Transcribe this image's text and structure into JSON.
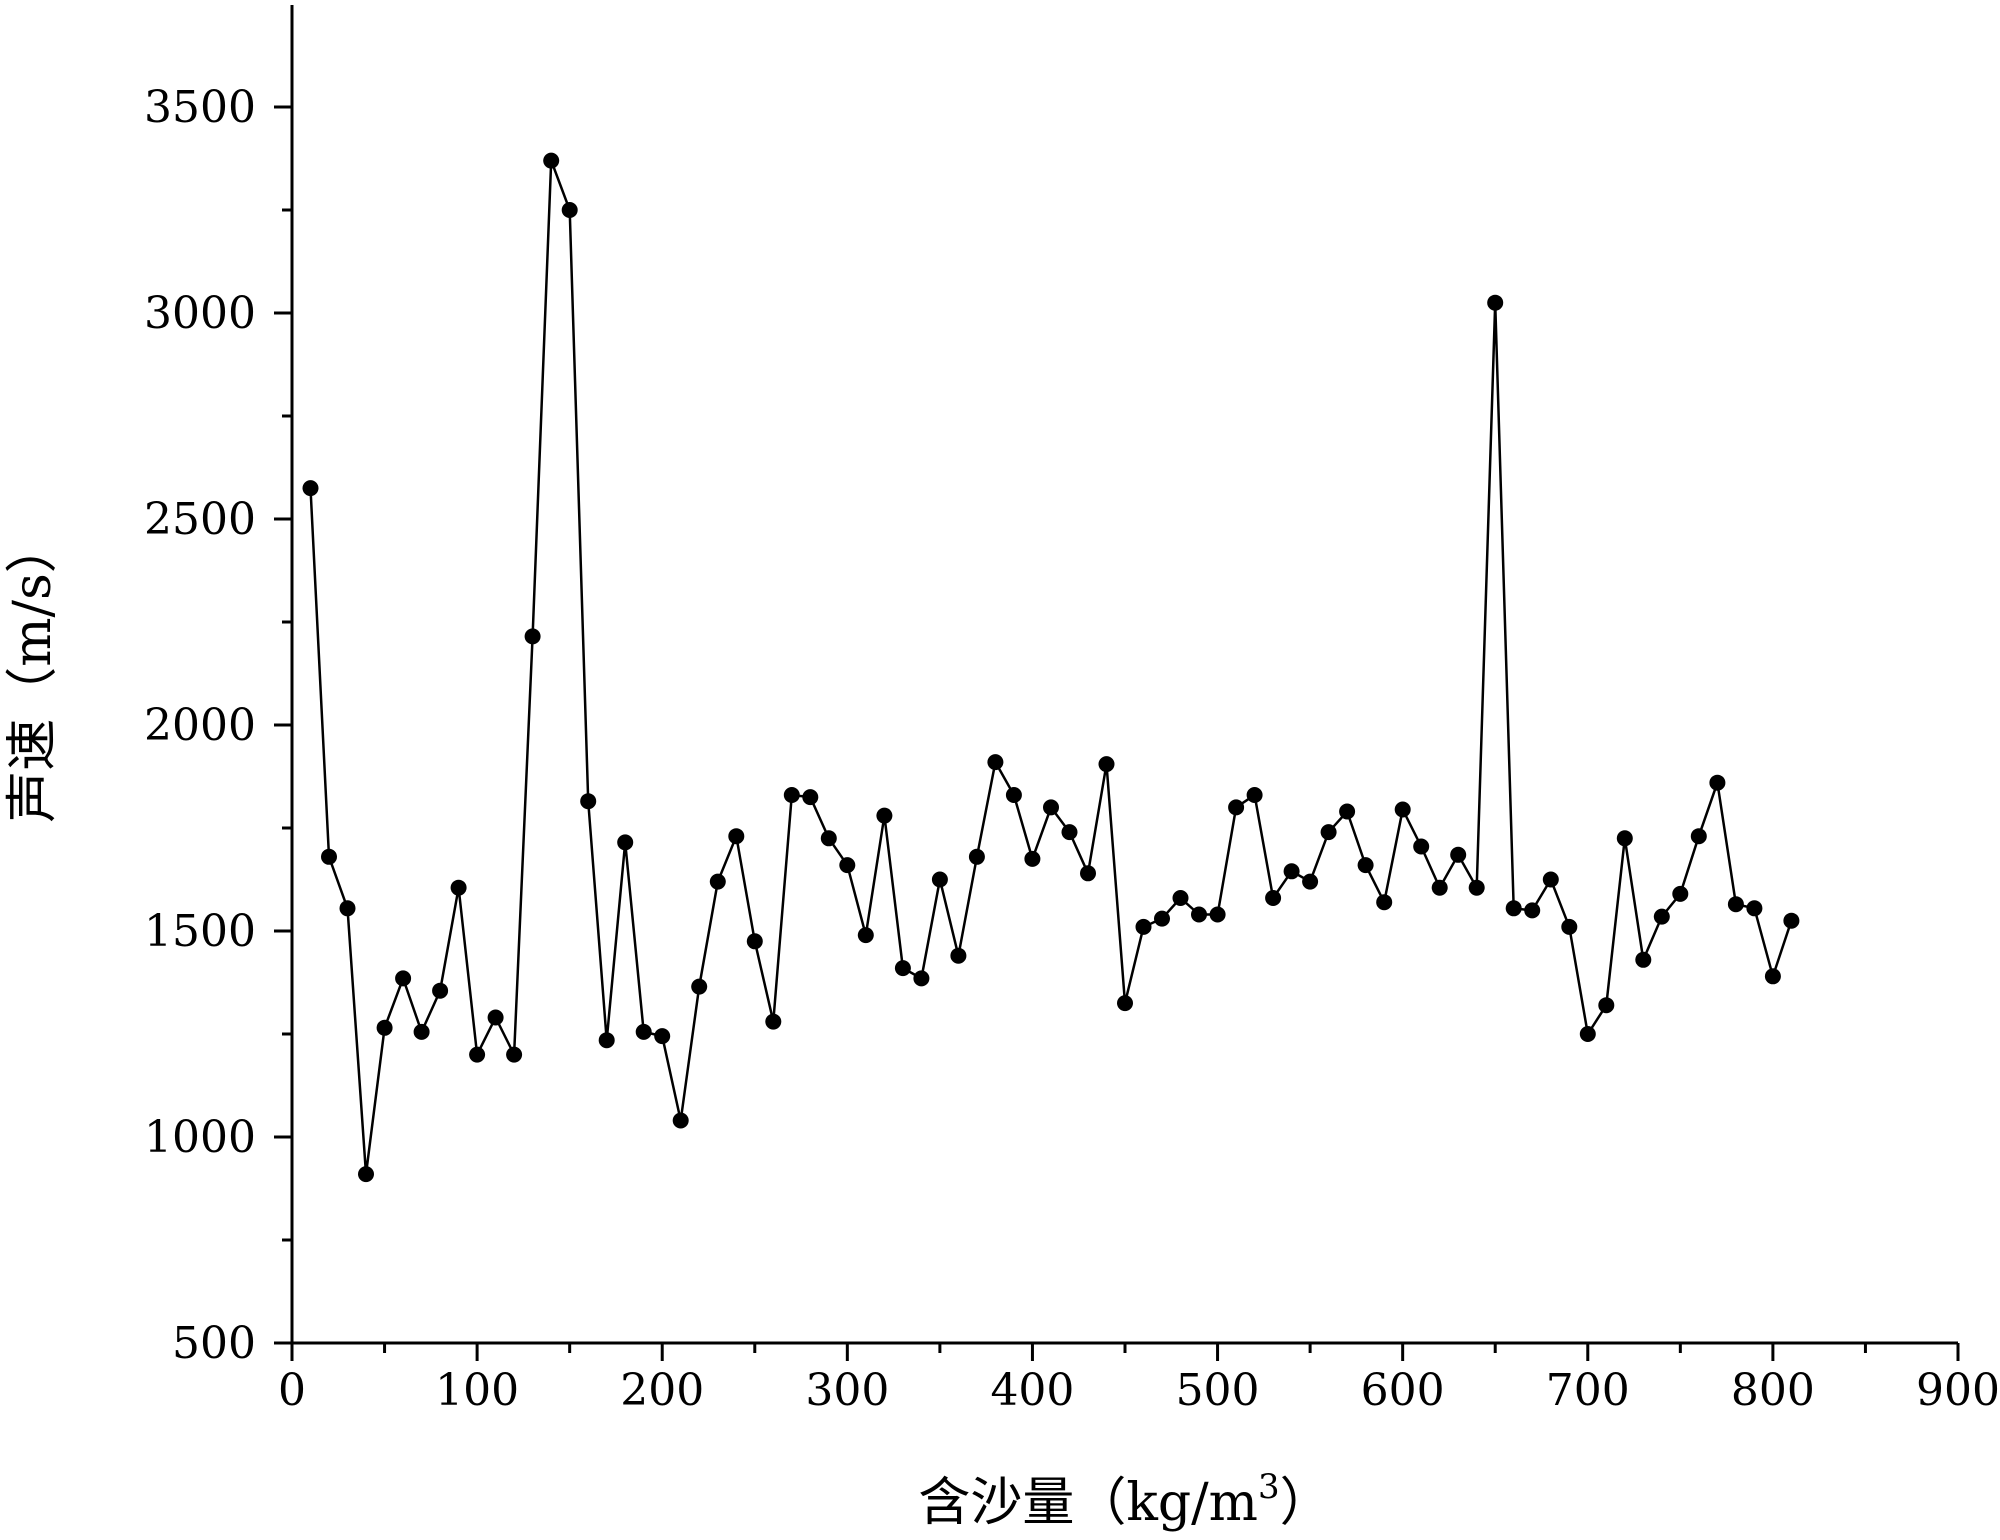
{
  "chart_data": {
    "type": "line",
    "xlabel": "含沙量（kg/m",
    "xlabel_sup": "3",
    "xlabel_end": "）",
    "ylabel": "声速（m/s）",
    "xlim": [
      0,
      900
    ],
    "ylim": [
      500,
      3750
    ],
    "x_ticks": [
      0,
      100,
      200,
      300,
      400,
      500,
      600,
      700,
      800,
      900
    ],
    "y_ticks": [
      500,
      1000,
      1500,
      2000,
      2500,
      3000,
      3500
    ],
    "grid": false,
    "series": [
      {
        "marker": "circle",
        "color": "#000000",
        "x": [
          10,
          20,
          30,
          40,
          50,
          60,
          70,
          80,
          90,
          100,
          110,
          120,
          130,
          140,
          150,
          160,
          170,
          180,
          190,
          200,
          210,
          220,
          230,
          240,
          250,
          260,
          270,
          280,
          290,
          300,
          310,
          320,
          330,
          340,
          350,
          360,
          370,
          380,
          390,
          400,
          410,
          420,
          430,
          440,
          450,
          460,
          470,
          480,
          490,
          500,
          510,
          520,
          530,
          540,
          550,
          560,
          570,
          580,
          590,
          600,
          610,
          620,
          630,
          640,
          650,
          660,
          670,
          680,
          690,
          700,
          710,
          720,
          730,
          740,
          750,
          760,
          770,
          780,
          790,
          800,
          810
        ],
        "y": [
          2575,
          1680,
          1555,
          910,
          1265,
          1385,
          1255,
          1355,
          1605,
          1200,
          1290,
          1200,
          2215,
          3370,
          3250,
          1815,
          1235,
          1715,
          1255,
          1245,
          1040,
          1365,
          1620,
          1730,
          1475,
          1280,
          1830,
          1825,
          1725,
          1660,
          1490,
          1780,
          1410,
          1385,
          1625,
          1440,
          1680,
          1910,
          1830,
          1675,
          1800,
          1740,
          1640,
          1905,
          1325,
          1510,
          1530,
          1580,
          1540,
          1540,
          1800,
          1830,
          1580,
          1645,
          1620,
          1740,
          1790,
          1660,
          1570,
          1795,
          1705,
          1605,
          1685,
          1605,
          3025,
          1555,
          1550,
          1625,
          1510,
          1250,
          1320,
          1725,
          1430,
          1535,
          1590,
          1730,
          1860,
          1565,
          1555,
          1390,
          1525
        ]
      }
    ]
  }
}
